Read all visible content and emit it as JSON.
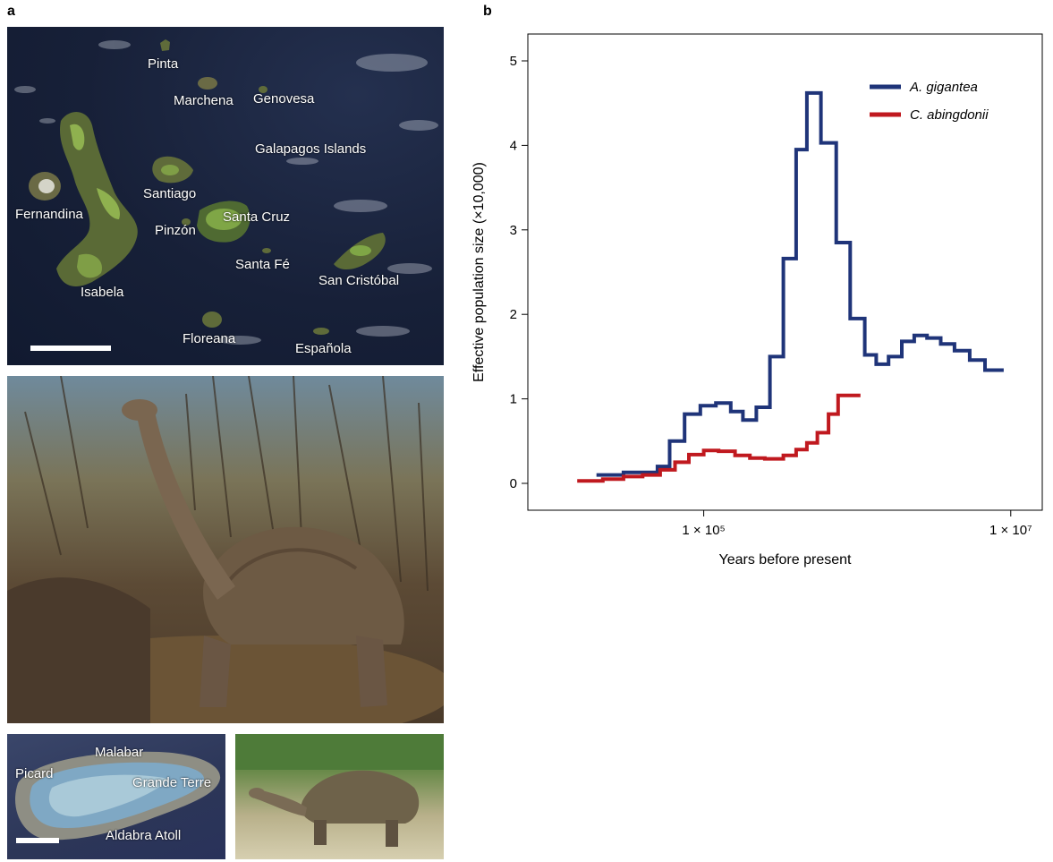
{
  "panel_a": {
    "letter": "a",
    "map": {
      "title_label": "Galapagos Islands",
      "islands": [
        {
          "id": "pinta",
          "name": "Pinta"
        },
        {
          "id": "marchena",
          "name": "Marchena"
        },
        {
          "id": "genovesa",
          "name": "Genovesa"
        },
        {
          "id": "santiago",
          "name": "Santiago"
        },
        {
          "id": "fernandina",
          "name": "Fernandina"
        },
        {
          "id": "santa-cruz",
          "name": "Santa Cruz"
        },
        {
          "id": "pinzon",
          "name": "Pinzón"
        },
        {
          "id": "santa-fe",
          "name": "Santa Fé"
        },
        {
          "id": "san-cristobal",
          "name": "San Cristóbal"
        },
        {
          "id": "isabela",
          "name": "Isabela"
        },
        {
          "id": "floreana",
          "name": "Floreana"
        },
        {
          "id": "espanola",
          "name": "Española"
        }
      ]
    },
    "aldabra": {
      "labels": {
        "malabar": "Malabar",
        "picard": "Picard",
        "grande_terre": "Grande Terre",
        "atoll": "Aldabra Atoll"
      }
    }
  },
  "panel_b": {
    "letter": "b",
    "legend": {
      "position": "top-right",
      "series_a": "A. gigantea",
      "series_b": "C. abingdonii"
    }
  },
  "colors": {
    "gigantea": "#1f3479",
    "abingdonii": "#c0191f"
  },
  "chart_data": {
    "type": "line",
    "step": true,
    "xlabel": "Years before present",
    "ylabel": "Effective population size (×10,000)",
    "xscale": "log",
    "xlim": [
      10000,
      15000000
    ],
    "ylim": [
      0,
      5
    ],
    "xticks": [
      {
        "value": 100000,
        "label": "1 × 10⁵"
      },
      {
        "value": 10000000,
        "label": "1 × 10⁷"
      }
    ],
    "yticks": [
      0,
      1,
      2,
      3,
      4,
      5
    ],
    "series": [
      {
        "name": "A. gigantea",
        "color": "#1f3479",
        "x": [
          20000,
          30000,
          50000,
          60000,
          75000,
          95000,
          120000,
          150000,
          180000,
          220000,
          270000,
          330000,
          400000,
          470000,
          580000,
          730000,
          900000,
          1120000,
          1330000,
          1600000,
          1950000,
          2350000,
          2850000,
          3500000,
          4300000,
          5400000,
          6800000,
          9000000
        ],
        "y": [
          0.1,
          0.13,
          0.2,
          0.5,
          0.82,
          0.92,
          0.95,
          0.85,
          0.75,
          0.9,
          1.5,
          2.66,
          3.95,
          4.62,
          4.03,
          2.85,
          1.95,
          1.52,
          1.41,
          1.5,
          1.68,
          1.75,
          1.72,
          1.65,
          1.57,
          1.46,
          1.34,
          1.34
        ]
      },
      {
        "name": "C. abingdonii",
        "color": "#c0191f",
        "x": [
          15000,
          22000,
          30000,
          40000,
          52000,
          65000,
          80000,
          100000,
          125000,
          160000,
          200000,
          250000,
          330000,
          400000,
          470000,
          550000,
          650000,
          750000,
          1050000
        ],
        "y": [
          0.03,
          0.05,
          0.08,
          0.1,
          0.16,
          0.25,
          0.34,
          0.39,
          0.38,
          0.33,
          0.3,
          0.29,
          0.33,
          0.4,
          0.48,
          0.6,
          0.82,
          1.04,
          1.04
        ]
      }
    ]
  }
}
